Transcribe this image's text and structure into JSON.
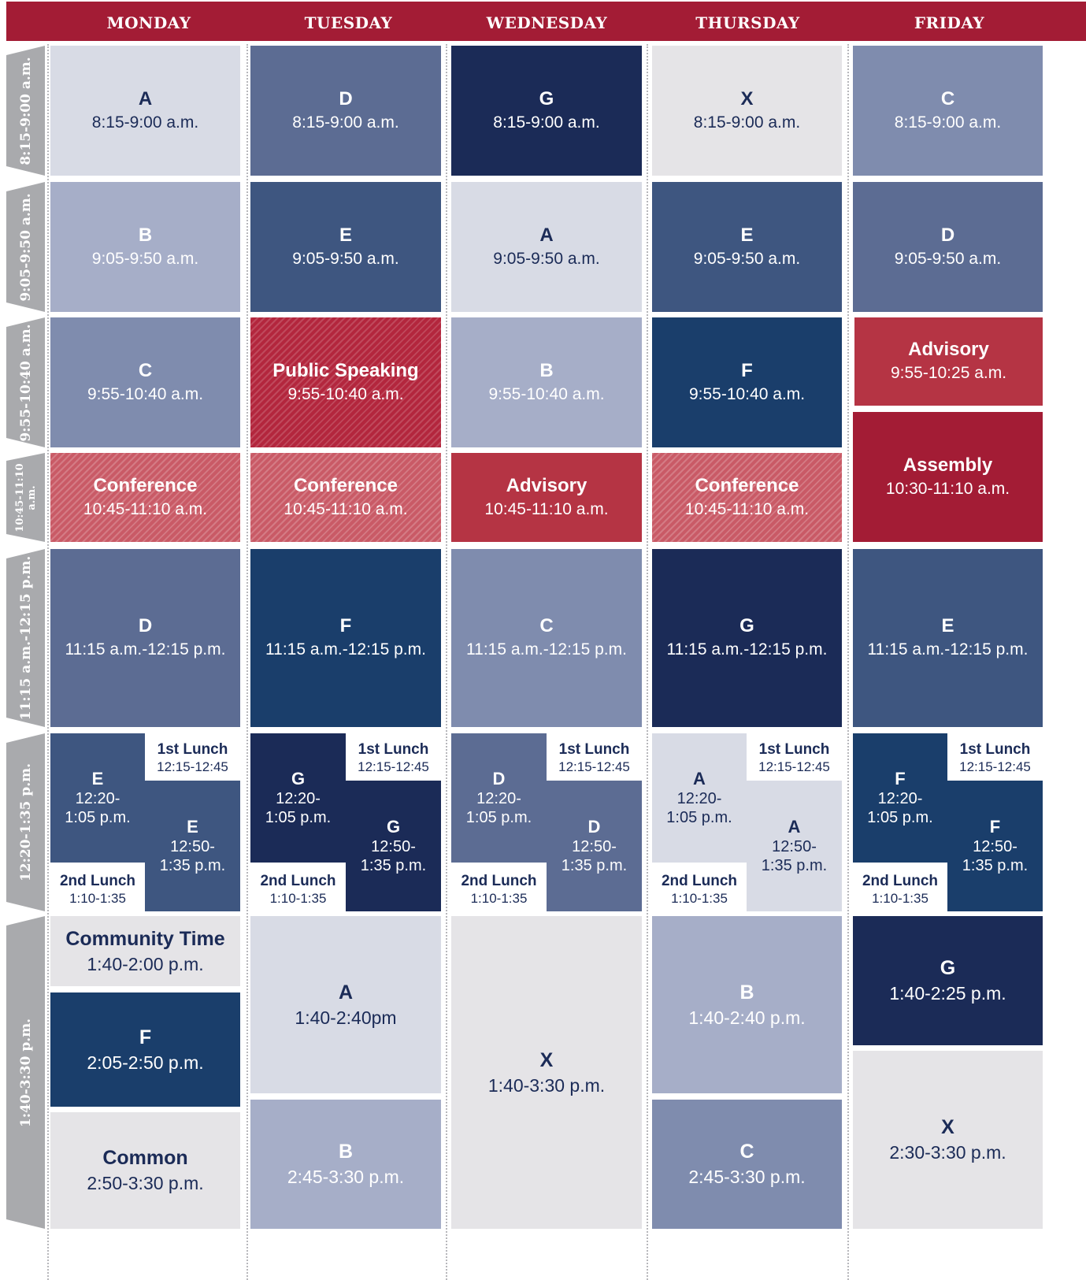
{
  "days": [
    "MONDAY",
    "TUESDAY",
    "WEDNESDAY",
    "THURSDAY",
    "FRIDAY"
  ],
  "time_tabs": [
    "8:15-9:00 a.m.",
    "9:05-9:50 a.m.",
    "9:55-10:40 a.m.",
    "10:45-11:10 a.m.",
    "11:15 a.m.-12:15 p.m.",
    "12:20-1:35 p.m.",
    "1:40-3:30 p.m."
  ],
  "colors": {
    "header_red": "#a31c35",
    "tab_gray": "#a9aaad",
    "navy": "#1b2b57",
    "blue_dark": "#1a3e6b",
    "blue_mid": "#3e5680",
    "slate": "#5c6c93",
    "periwinkle": "#7f8cae",
    "light_periwinkle": "#a6aec8",
    "pale": "#d8dbe5",
    "gray": "#e5e4e7",
    "advisory_red": "#b53444",
    "hatched_red": "#c95a66"
  },
  "schedule": {
    "monday": {
      "p1": {
        "title": "A",
        "time": "8:15-9:00 a.m."
      },
      "p2": {
        "title": "B",
        "time": "9:05-9:50 a.m."
      },
      "p3": {
        "title": "C",
        "time": "9:55-10:40 a.m."
      },
      "p4": {
        "title": "Conference",
        "time": "10:45-11:10 a.m."
      },
      "p5": {
        "title": "D",
        "time": "11:15 a.m.-12:15 p.m."
      },
      "lunch": {
        "first_title": "E",
        "first_time1": "12:20-",
        "first_time2": "1:05 p.m.",
        "second_title": "E",
        "second_time1": "12:50-",
        "second_time2": "1:35 p.m.",
        "first_lunch_label": "1st Lunch",
        "first_lunch_time": "12:15-12:45",
        "second_lunch_label": "2nd Lunch",
        "second_lunch_time": "1:10-1:35"
      },
      "a1": {
        "title": "Community Time",
        "time": "1:40-2:00 p.m."
      },
      "a2": {
        "title": "F",
        "time": "2:05-2:50 p.m."
      },
      "a3": {
        "title": "Common",
        "time": "2:50-3:30 p.m."
      }
    },
    "tuesday": {
      "p1": {
        "title": "D",
        "time": "8:15-9:00 a.m."
      },
      "p2": {
        "title": "E",
        "time": "9:05-9:50 a.m."
      },
      "p3": {
        "title": "Public Speaking",
        "time": "9:55-10:40 a.m."
      },
      "p4": {
        "title": "Conference",
        "time": "10:45-11:10 a.m."
      },
      "p5": {
        "title": "F",
        "time": "11:15 a.m.-12:15 p.m."
      },
      "lunch": {
        "first_title": "G",
        "first_time1": "12:20-",
        "first_time2": "1:05 p.m.",
        "second_title": "G",
        "second_time1": "12:50-",
        "second_time2": "1:35 p.m.",
        "first_lunch_label": "1st Lunch",
        "first_lunch_time": "12:15-12:45",
        "second_lunch_label": "2nd Lunch",
        "second_lunch_time": "1:10-1:35"
      },
      "a1": {
        "title": "A",
        "time": "1:40-2:40pm"
      },
      "a2": {
        "title": "B",
        "time": "2:45-3:30 p.m."
      }
    },
    "wednesday": {
      "p1": {
        "title": "G",
        "time": "8:15-9:00 a.m."
      },
      "p2": {
        "title": "A",
        "time": "9:05-9:50 a.m."
      },
      "p3": {
        "title": "B",
        "time": "9:55-10:40 a.m."
      },
      "p4": {
        "title": "Advisory",
        "time": "10:45-11:10 a.m."
      },
      "p5": {
        "title": "C",
        "time": "11:15 a.m.-12:15 p.m."
      },
      "lunch": {
        "first_title": "D",
        "first_time1": "12:20-",
        "first_time2": "1:05 p.m.",
        "second_title": "D",
        "second_time1": "12:50-",
        "second_time2": "1:35 p.m.",
        "first_lunch_label": "1st Lunch",
        "first_lunch_time": "12:15-12:45",
        "second_lunch_label": "2nd Lunch",
        "second_lunch_time": "1:10-1:35"
      },
      "a1": {
        "title": "X",
        "time": "1:40-3:30 p.m."
      }
    },
    "thursday": {
      "p1": {
        "title": "X",
        "time": "8:15-9:00 a.m."
      },
      "p2": {
        "title": "E",
        "time": "9:05-9:50 a.m."
      },
      "p3": {
        "title": "F",
        "time": "9:55-10:40 a.m."
      },
      "p4": {
        "title": "Conference",
        "time": "10:45-11:10 a.m."
      },
      "p5": {
        "title": "G",
        "time": "11:15 a.m.-12:15 p.m."
      },
      "lunch": {
        "first_title": "A",
        "first_time1": "12:20-",
        "first_time2": "1:05 p.m.",
        "second_title": "A",
        "second_time1": "12:50-",
        "second_time2": "1:35 p.m.",
        "first_lunch_label": "1st Lunch",
        "first_lunch_time": "12:15-12:45",
        "second_lunch_label": "2nd Lunch",
        "second_lunch_time": "1:10-1:35"
      },
      "a1": {
        "title": "B",
        "time": "1:40-2:40 p.m."
      },
      "a2": {
        "title": "C",
        "time": "2:45-3:30 p.m."
      }
    },
    "friday": {
      "p1": {
        "title": "C",
        "time": "8:15-9:00 a.m."
      },
      "p2": {
        "title": "D",
        "time": "9:05-9:50 a.m."
      },
      "p3": {
        "title": "Advisory",
        "time": "9:55-10:25 a.m."
      },
      "p4": {
        "title": "Assembly",
        "time": "10:30-11:10 a.m."
      },
      "p5": {
        "title": "E",
        "time": "11:15 a.m.-12:15 p.m."
      },
      "lunch": {
        "first_title": "F",
        "first_time1": "12:20-",
        "first_time2": "1:05 p.m.",
        "second_title": "F",
        "second_time1": "12:50-",
        "second_time2": "1:35 p.m.",
        "first_lunch_label": "1st Lunch",
        "first_lunch_time": "12:15-12:45",
        "second_lunch_label": "2nd Lunch",
        "second_lunch_time": "1:10-1:35"
      },
      "a1": {
        "title": "G",
        "time": "1:40-2:25 p.m."
      },
      "a2": {
        "title": "X",
        "time": "2:30-3:30 p.m."
      }
    }
  }
}
